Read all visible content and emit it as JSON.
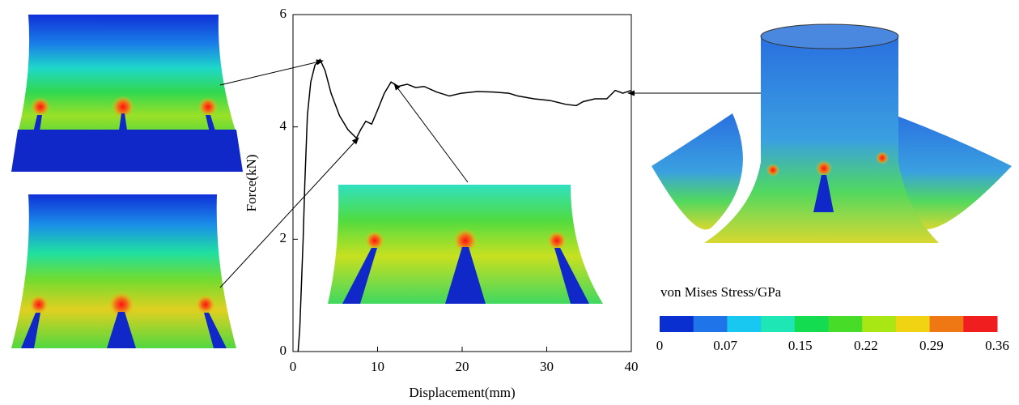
{
  "chart_data": {
    "type": "line",
    "xlabel": "Displacement(mm)",
    "ylabel": "Force(kN)",
    "x": [
      0.6,
      0.8,
      1.0,
      1.2,
      1.4,
      1.7,
      2.1,
      2.6,
      3.2,
      3.8,
      4.5,
      5.5,
      6.5,
      7.5,
      8.0,
      8.6,
      9.3,
      10.0,
      10.8,
      11.6,
      12.4,
      13.5,
      14.5,
      15.5,
      17.0,
      18.5,
      19.9,
      21.8,
      23.7,
      25.5,
      26.6,
      28.5,
      30.4,
      32.3,
      33.5,
      34.3,
      35.7,
      37.1,
      38.1,
      39.0,
      40.0
    ],
    "values": [
      0,
      0.4,
      1.2,
      2.0,
      3.0,
      4.2,
      4.8,
      5.1,
      5.2,
      5.0,
      4.6,
      4.2,
      3.95,
      3.8,
      3.95,
      4.1,
      4.05,
      4.3,
      4.6,
      4.8,
      4.72,
      4.76,
      4.7,
      4.72,
      4.62,
      4.55,
      4.6,
      4.63,
      4.62,
      4.6,
      4.55,
      4.5,
      4.47,
      4.4,
      4.38,
      4.45,
      4.5,
      4.5,
      4.65,
      4.6,
      4.65
    ],
    "color": "#000000",
    "xlim": [
      0,
      40
    ],
    "xticks": [
      0,
      10,
      20,
      30,
      40
    ],
    "ylim": [
      0,
      6
    ],
    "yticks": [
      0,
      2,
      4,
      6
    ],
    "colorbar": {
      "title": "von Mises Stress/GPa",
      "colors": [
        "#0a2fd0",
        "#1e74e8",
        "#19c8f0",
        "#1ee6b4",
        "#14dc50",
        "#46dc28",
        "#a8e614",
        "#f0d414",
        "#f07814",
        "#f01e1e"
      ],
      "clim": [
        0,
        0.36
      ],
      "ticks": [
        0,
        0.07,
        0.15,
        0.22,
        0.29,
        0.36
      ]
    }
  }
}
